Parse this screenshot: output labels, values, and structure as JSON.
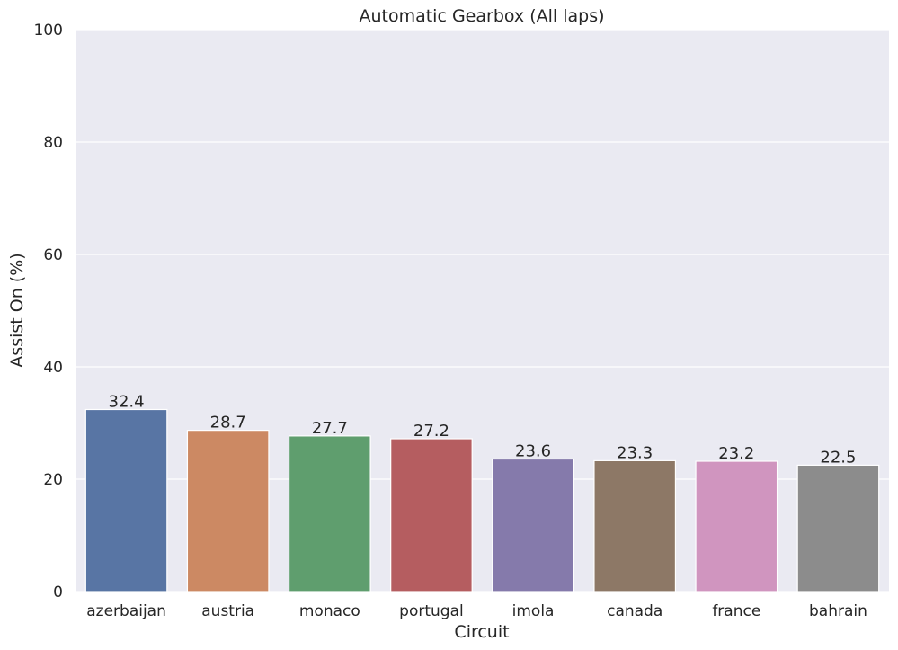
{
  "chart_data": {
    "type": "bar",
    "title": "Automatic Gearbox (All laps)",
    "xlabel": "Circuit",
    "ylabel": "Assist On (%)",
    "categories": [
      "azerbaijan",
      "austria",
      "monaco",
      "portugal",
      "imola",
      "canada",
      "france",
      "bahrain"
    ],
    "values": [
      32.4,
      28.7,
      27.7,
      27.2,
      23.6,
      23.3,
      23.2,
      22.5
    ],
    "value_labels": [
      "32.4",
      "28.7",
      "27.7",
      "27.2",
      "23.6",
      "23.3",
      "23.2",
      "22.5"
    ],
    "colors": [
      "#5875a4",
      "#cc8963",
      "#5f9e6e",
      "#b55d60",
      "#857aab",
      "#8d7866",
      "#d095bf",
      "#8c8c8c"
    ],
    "ylim": [
      0,
      100
    ],
    "yticks": [
      0,
      20,
      40,
      60,
      80,
      100
    ],
    "ytick_labels": [
      "0",
      "20",
      "40",
      "60",
      "80",
      "100"
    ],
    "grid": true,
    "style": {
      "plot_background": "#eaeaf2",
      "grid_color": "#ffffff",
      "text_color": "#262626"
    }
  }
}
